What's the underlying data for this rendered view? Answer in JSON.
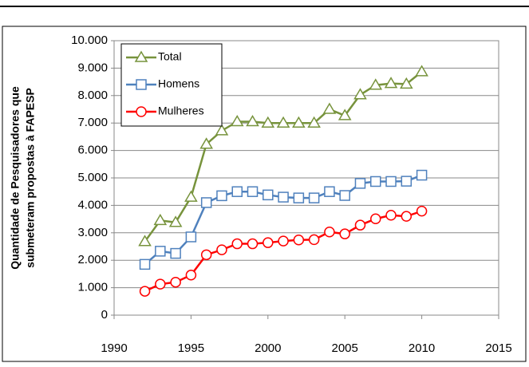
{
  "chart_data": {
    "type": "line",
    "ylabel": [
      "Quantidade de Pesquisadores que",
      "submeteram propostas à FAPESP"
    ],
    "x": [
      1992,
      1993,
      1994,
      1995,
      1996,
      1997,
      1998,
      1999,
      2000,
      2001,
      2002,
      2003,
      2004,
      2005,
      2006,
      2007,
      2008,
      2009,
      2010
    ],
    "series": [
      {
        "name": "Total",
        "color": "#77933c",
        "marker": "triangle",
        "values": [
          2680,
          3450,
          3380,
          4300,
          6230,
          6720,
          7050,
          7050,
          7000,
          7000,
          7000,
          7000,
          7500,
          7270,
          8030,
          8380,
          8440,
          8420,
          8870
        ]
      },
      {
        "name": "Homens",
        "color": "#4f81bd",
        "marker": "square",
        "values": [
          1850,
          2330,
          2250,
          2850,
          4100,
          4350,
          4500,
          4500,
          4380,
          4300,
          4270,
          4270,
          4500,
          4360,
          4800,
          4870,
          4870,
          4880,
          5100
        ]
      },
      {
        "name": "Mulheres",
        "color": "#ff0000",
        "marker": "circle",
        "values": [
          870,
          1130,
          1200,
          1460,
          2200,
          2380,
          2600,
          2600,
          2640,
          2700,
          2740,
          2750,
          3030,
          2960,
          3280,
          3510,
          3640,
          3600,
          3790
        ]
      }
    ],
    "xlim": [
      1990,
      2015
    ],
    "xticks": [
      1990,
      1995,
      2000,
      2005,
      2010,
      2015
    ],
    "ylim": [
      0,
      10000
    ],
    "yticks": [
      0,
      {
        "value": 1000,
        "label": "1.000"
      },
      {
        "value": 2000,
        "label": "2.000"
      },
      {
        "value": 3000,
        "label": "3.000"
      },
      {
        "value": 4000,
        "label": "4.000"
      },
      {
        "value": 5000,
        "label": "5.000"
      },
      {
        "value": 6000,
        "label": "6.000"
      },
      {
        "value": 7000,
        "label": "7.000"
      },
      {
        "value": 8000,
        "label": "8.000"
      },
      {
        "value": 9000,
        "label": "9.000"
      },
      {
        "value": 10000,
        "label": "10.000"
      }
    ],
    "grid": true,
    "legend": "top-left"
  }
}
